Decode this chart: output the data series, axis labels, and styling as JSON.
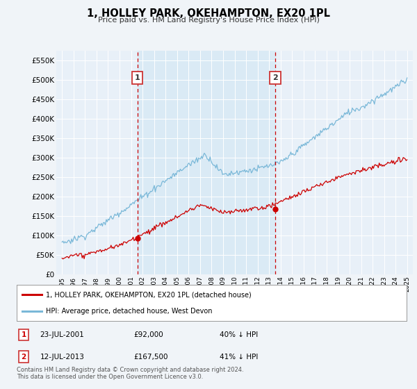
{
  "title": "1, HOLLEY PARK, OKEHAMPTON, EX20 1PL",
  "subtitle": "Price paid vs. HM Land Registry's House Price Index (HPI)",
  "ylabel_ticks": [
    "£0",
    "£50K",
    "£100K",
    "£150K",
    "£200K",
    "£250K",
    "£300K",
    "£350K",
    "£400K",
    "£450K",
    "£500K",
    "£550K"
  ],
  "ytick_vals": [
    0,
    50000,
    100000,
    150000,
    200000,
    250000,
    300000,
    350000,
    400000,
    450000,
    500000,
    550000
  ],
  "ylim": [
    0,
    575000
  ],
  "sale1_date": 2001.55,
  "sale1_price": 92000,
  "sale2_date": 2013.53,
  "sale2_price": 167500,
  "sale1_text": "23-JUL-2001",
  "sale1_price_text": "£92,000",
  "sale1_hpi_text": "40% ↓ HPI",
  "sale2_text": "12-JUL-2013",
  "sale2_price_text": "£167,500",
  "sale2_hpi_text": "41% ↓ HPI",
  "legend_line1": "1, HOLLEY PARK, OKEHAMPTON, EX20 1PL (detached house)",
  "legend_line2": "HPI: Average price, detached house, West Devon",
  "footer": "Contains HM Land Registry data © Crown copyright and database right 2024.\nThis data is licensed under the Open Government Licence v3.0.",
  "hpi_color": "#7ab8d8",
  "price_color": "#cc0000",
  "vline_color": "#cc0000",
  "background_color": "#f0f4f8",
  "plot_bg_color": "#e8f0f8",
  "highlight_color": "#daeaf5"
}
